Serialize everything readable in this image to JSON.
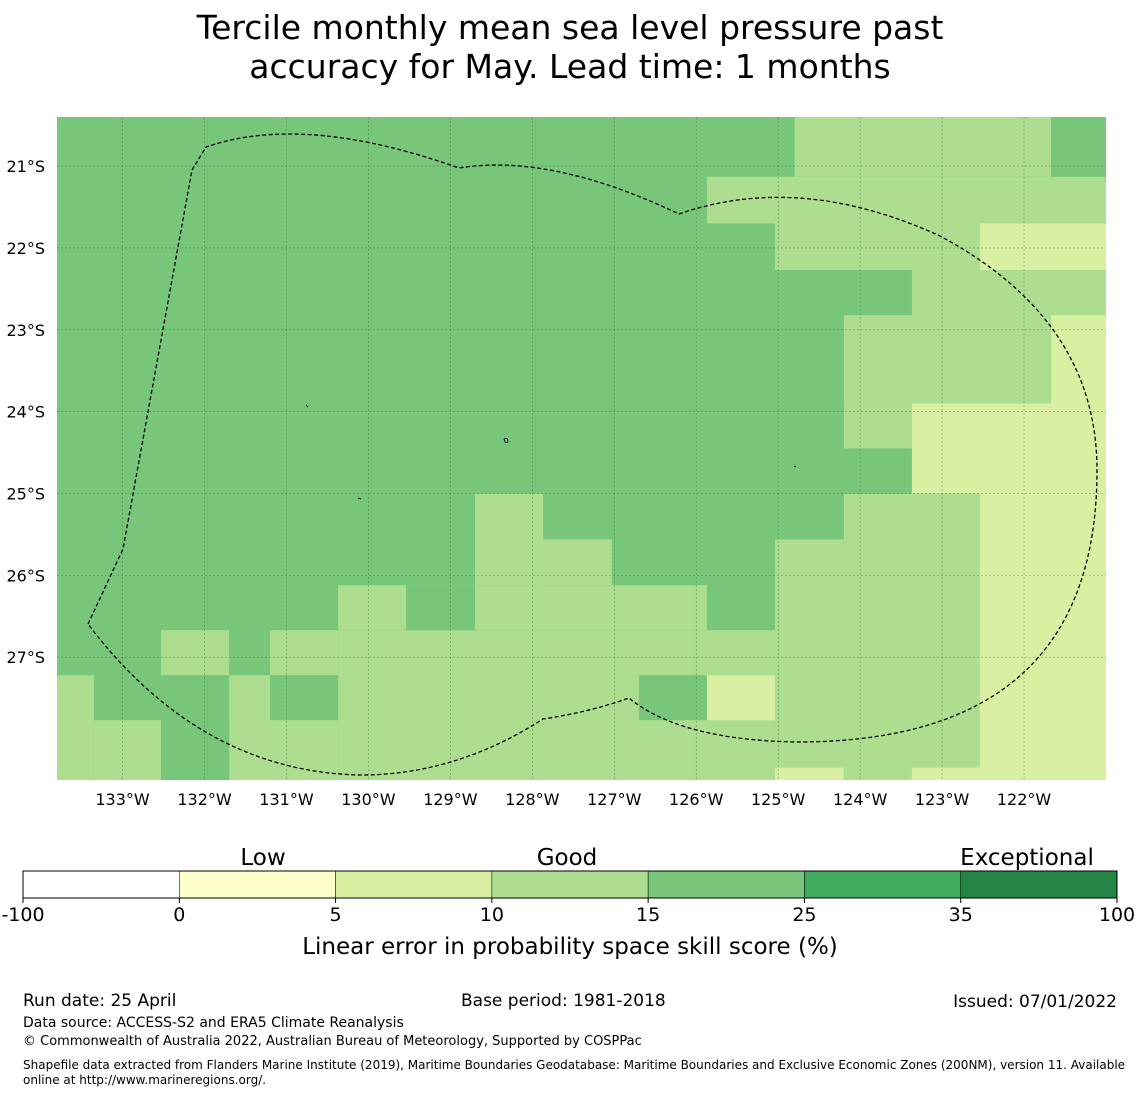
{
  "title": {
    "line1": "Tercile monthly mean sea level pressure past",
    "line2": "accuracy for May. Lead time: 1 months"
  },
  "map": {
    "lon_range": [
      -133.8,
      -121.0
    ],
    "lat_range": [
      -28.5,
      -20.4
    ],
    "x_ticks": [
      {
        "lon": -133,
        "label": "133°W"
      },
      {
        "lon": -132,
        "label": "132°W"
      },
      {
        "lon": -131,
        "label": "131°W"
      },
      {
        "lon": -130,
        "label": "130°W"
      },
      {
        "lon": -129,
        "label": "129°W"
      },
      {
        "lon": -128,
        "label": "128°W"
      },
      {
        "lon": -127,
        "label": "127°W"
      },
      {
        "lon": -126,
        "label": "126°W"
      },
      {
        "lon": -125,
        "label": "125°W"
      },
      {
        "lon": -124,
        "label": "124°W"
      },
      {
        "lon": -123,
        "label": "123°W"
      },
      {
        "lon": -122,
        "label": "122°W"
      }
    ],
    "y_ticks": [
      {
        "lat": -21,
        "label": "21°S"
      },
      {
        "lat": -22,
        "label": "22°S"
      },
      {
        "lat": -23,
        "label": "23°S"
      },
      {
        "lat": -24,
        "label": "24°S"
      },
      {
        "lat": -25,
        "label": "25°S"
      },
      {
        "lat": -26,
        "label": "26°S"
      },
      {
        "lat": -27,
        "label": "27°S"
      }
    ],
    "category_colors": {
      "A": "#78c679",
      "B": "#addd8e",
      "C": "#d9f0a3",
      "D": "#78c679"
    },
    "cells": [
      {
        "lon0": -133.8,
        "lon1": -121.0,
        "lat0": -28.5,
        "lat1": -20.4,
        "cat": "A"
      },
      {
        "lon0": -125.8,
        "lon1": -121.0,
        "lat0": -21.5,
        "lat1": -21.5,
        "cat": "B"
      },
      {
        "lon0": -124.8,
        "lon1": -121.0,
        "lat0": -20.4,
        "lat1": -21.13,
        "cat": "B"
      },
      {
        "lon0": -125.87,
        "lon1": -121.0,
        "lat0": -21.13,
        "lat1": -21.7,
        "cat": "B"
      },
      {
        "lon0": -125.04,
        "lon1": -121.0,
        "lat0": -21.7,
        "lat1": -22.27,
        "cat": "B"
      },
      {
        "lon0": -123.37,
        "lon1": -121.0,
        "lat0": -22.27,
        "lat1": -22.82,
        "cat": "B"
      },
      {
        "lon0": -124.2,
        "lon1": -121.0,
        "lat0": -22.82,
        "lat1": -23.9,
        "cat": "B"
      },
      {
        "lon0": -124.2,
        "lon1": -123.37,
        "lat0": -23.9,
        "lat1": -24.45,
        "cat": "B"
      },
      {
        "lon0": -124.2,
        "lon1": -121.0,
        "lat0": -25.0,
        "lat1": -28.5,
        "cat": "B"
      },
      {
        "lon0": -125.04,
        "lon1": -124.2,
        "lat0": -25.56,
        "lat1": -28.5,
        "cat": "B"
      },
      {
        "lon0": -128.7,
        "lon1": -127.87,
        "lat0": -25.0,
        "lat1": -26.12,
        "cat": "B"
      },
      {
        "lon0": -127.87,
        "lon1": -127.03,
        "lat0": -25.56,
        "lat1": -26.12,
        "cat": "B"
      },
      {
        "lon0": -130.37,
        "lon1": -125.87,
        "lat0": -26.12,
        "lat1": -26.67,
        "cat": "B"
      },
      {
        "lon0": -130.37,
        "lon1": -125.04,
        "lat0": -26.67,
        "lat1": -28.5,
        "cat": "B"
      },
      {
        "lon0": -131.2,
        "lon1": -130.37,
        "lat0": -26.67,
        "lat1": -27.22,
        "cat": "B"
      },
      {
        "lon0": -132.53,
        "lon1": -131.7,
        "lat0": -26.67,
        "lat1": -27.22,
        "cat": "B"
      },
      {
        "lon0": -133.8,
        "lon1": -133.35,
        "lat0": -27.22,
        "lat1": -28.5,
        "cat": "B"
      },
      {
        "lon0": -133.35,
        "lon1": -132.53,
        "lat0": -27.77,
        "lat1": -28.5,
        "cat": "B"
      },
      {
        "lon0": -131.7,
        "lon1": -130.37,
        "lat0": -27.22,
        "lat1": -28.5,
        "cat": "B"
      },
      {
        "lon0": -122.54,
        "lon1": -121.0,
        "lat0": -21.7,
        "lat1": -22.27,
        "cat": "C"
      },
      {
        "lon0": -121.67,
        "lon1": -121.0,
        "lat0": -22.82,
        "lat1": -23.9,
        "cat": "C"
      },
      {
        "lon0": -123.37,
        "lon1": -121.0,
        "lat0": -23.9,
        "lat1": -25.0,
        "cat": "C"
      },
      {
        "lon0": -122.54,
        "lon1": -121.0,
        "lat0": -25.0,
        "lat1": -28.5,
        "cat": "C"
      },
      {
        "lon0": -125.87,
        "lon1": -125.04,
        "lat0": -27.22,
        "lat1": -27.77,
        "cat": "C"
      },
      {
        "lon0": -125.04,
        "lon1": -124.2,
        "lat0": -28.35,
        "lat1": -28.5,
        "cat": "C"
      },
      {
        "lon0": -123.37,
        "lon1": -122.54,
        "lat0": -28.35,
        "lat1": -28.5,
        "cat": "C"
      },
      {
        "lon0": -121.67,
        "lon1": -121.0,
        "lat0": -20.4,
        "lat1": -21.13,
        "cat": "D"
      },
      {
        "lon0": -125.04,
        "lon1": -123.37,
        "lat0": -22.27,
        "lat1": -22.82,
        "cat": "D"
      },
      {
        "lon0": -125.04,
        "lon1": -124.2,
        "lat0": -22.82,
        "lat1": -24.45,
        "cat": "D"
      },
      {
        "lon0": -125.04,
        "lon1": -123.37,
        "lat0": -24.45,
        "lat1": -25.0,
        "cat": "D"
      },
      {
        "lon0": -125.04,
        "lon1": -124.2,
        "lat0": -25.0,
        "lat1": -25.56,
        "cat": "D"
      },
      {
        "lon0": -129.54,
        "lon1": -128.7,
        "lat0": -26.67,
        "lat1": -26.12,
        "cat": "D"
      },
      {
        "lon0": -126.7,
        "lon1": -125.87,
        "lat0": -27.22,
        "lat1": -27.77,
        "cat": "D"
      },
      {
        "lon0": -131.2,
        "lon1": -130.37,
        "lat0": -27.22,
        "lat1": -27.77,
        "cat": "D"
      },
      {
        "lon0": -132.53,
        "lon1": -131.7,
        "lat0": -27.77,
        "lat1": -28.5,
        "cat": "D"
      }
    ],
    "boundary_line_color": "#000000"
  },
  "colorbar": {
    "category_labels": [
      "Low",
      "Good",
      "Exceptional"
    ],
    "bins": [
      {
        "from": "-100",
        "to": "0",
        "color": "#ffffff"
      },
      {
        "from": "0",
        "to": "5",
        "color": "#ffffcc"
      },
      {
        "from": "5",
        "to": "10",
        "color": "#d9f0a3"
      },
      {
        "from": "10",
        "to": "15",
        "color": "#addd8e"
      },
      {
        "from": "15",
        "to": "25",
        "color": "#78c679"
      },
      {
        "from": "25",
        "to": "35",
        "color": "#41ab5d"
      },
      {
        "from": "35",
        "to": "100",
        "color": "#238443"
      }
    ],
    "tick_labels": [
      "-100",
      "0",
      "5",
      "10",
      "15",
      "25",
      "35",
      "100"
    ],
    "label": "Linear error in probability space skill score (%)"
  },
  "footer": {
    "run_date": "Run date: 25 April",
    "base_period": "Base period: 1981-2018",
    "issued": "Issued: 07/01/2022",
    "data_source": "Data source: ACCESS-S2 and ERA5 Climate Reanalysis",
    "copyright": "© Commonwealth of Australia 2022, Australian Bureau of Meteorology, Supported by COSPPac",
    "shapefile_note": "Shapefile data extracted from Flanders Marine Institute (2019), Maritime Boundaries Geodatabase: Maritime Boundaries and Exclusive Economic Zones (200NM), version 11. Available online at http://www.marineregions.org/."
  }
}
